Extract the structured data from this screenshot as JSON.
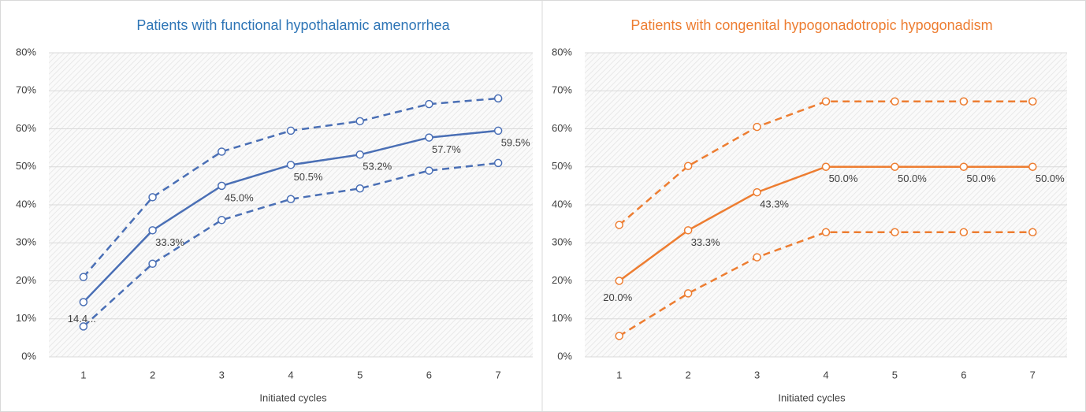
{
  "chart_data": [
    {
      "type": "line",
      "title": "Patients with functional hypothalamic amenorrhea",
      "title_color": "#2e75b6",
      "x_label": "Initiated cycles",
      "categories": [
        "1",
        "2",
        "3",
        "4",
        "5",
        "6",
        "7"
      ],
      "ylim": [
        0,
        80
      ],
      "yticks": [
        {
          "value": 0,
          "label": "0%"
        },
        {
          "value": 10,
          "label": "10%"
        },
        {
          "value": 20,
          "label": "20%"
        },
        {
          "value": 30,
          "label": "30%"
        },
        {
          "value": 40,
          "label": "40%"
        },
        {
          "value": 50,
          "label": "50%"
        },
        {
          "value": 60,
          "label": "60%"
        },
        {
          "value": 70,
          "label": "70%"
        },
        {
          "value": 80,
          "label": "80%"
        }
      ],
      "grid": true,
      "series": [
        {
          "color": "#4a6fb5",
          "style": "dashed",
          "values": [
            21,
            42,
            54,
            59.5,
            62,
            66.5,
            68
          ]
        },
        {
          "color": "#4a6fb5",
          "style": "solid",
          "values": [
            14.4,
            33.3,
            45.0,
            50.5,
            53.2,
            57.7,
            59.5
          ],
          "value_labels": [
            "14.4...",
            "33.3%",
            "45.0%",
            "50.5%",
            "53.2%",
            "57.7%",
            "59.5%"
          ]
        },
        {
          "color": "#4a6fb5",
          "style": "dashed",
          "values": [
            8,
            24.5,
            36,
            41.5,
            44.3,
            49,
            51
          ]
        }
      ]
    },
    {
      "type": "line",
      "title": "Patients with congenital hypogonadotropic hypogonadism",
      "title_color": "#ed7d31",
      "x_label": "Initiated cycles",
      "categories": [
        "1",
        "2",
        "3",
        "4",
        "5",
        "6",
        "7"
      ],
      "ylim": [
        0,
        80
      ],
      "yticks": [
        {
          "value": 0,
          "label": "0%"
        },
        {
          "value": 10,
          "label": "10%"
        },
        {
          "value": 20,
          "label": "20%"
        },
        {
          "value": 30,
          "label": "30%"
        },
        {
          "value": 40,
          "label": "40%"
        },
        {
          "value": 50,
          "label": "50%"
        },
        {
          "value": 60,
          "label": "60%"
        },
        {
          "value": 70,
          "label": "70%"
        },
        {
          "value": 80,
          "label": "80%"
        }
      ],
      "grid": true,
      "series": [
        {
          "color": "#ed7d31",
          "style": "dashed",
          "values": [
            34.7,
            50.2,
            60.5,
            67.2,
            67.2,
            67.2,
            67.2
          ]
        },
        {
          "color": "#ed7d31",
          "style": "solid",
          "values": [
            20.0,
            33.3,
            43.3,
            50.0,
            50.0,
            50.0,
            50.0
          ],
          "value_labels": [
            "20.0%",
            "33.3%",
            "43.3%",
            "50.0%",
            "50.0%",
            "50.0%",
            "50.0%"
          ]
        },
        {
          "color": "#ed7d31",
          "style": "dashed",
          "values": [
            5.5,
            16.7,
            26.2,
            32.8,
            32.8,
            32.8,
            32.8
          ]
        }
      ]
    }
  ]
}
